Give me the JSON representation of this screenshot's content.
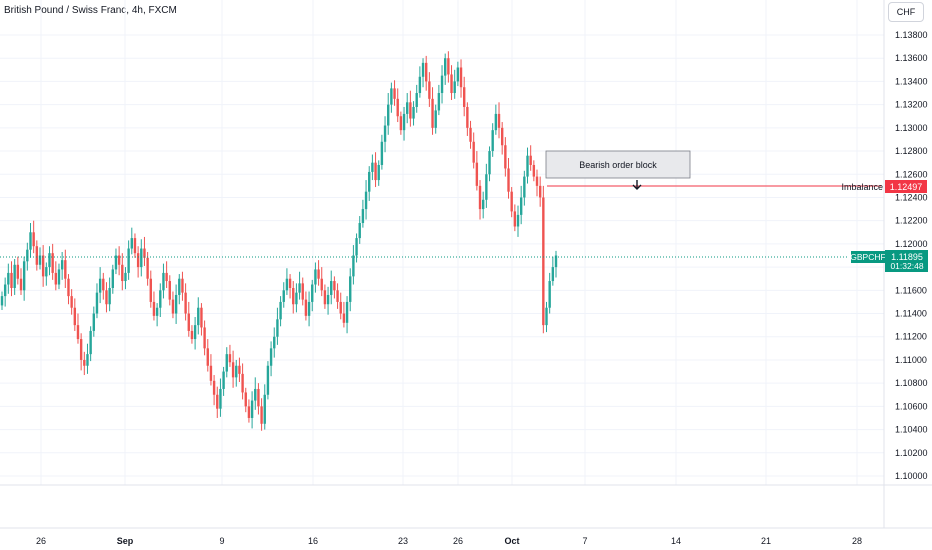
{
  "header": {
    "symbol_title": "British Pound / Swiss Franc, 4h, FXCM",
    "currency_button": "CHF"
  },
  "price_axis": {
    "ticks": [
      "1.13800",
      "1.13600",
      "1.13400",
      "1.13200",
      "1.13000",
      "1.12800",
      "1.12600",
      "1.12400",
      "1.12200",
      "1.12000",
      "1.11800",
      "1.11600",
      "1.11400",
      "1.11200",
      "1.11000",
      "1.10800",
      "1.10600",
      "1.10400",
      "1.10200",
      "1.10000"
    ]
  },
  "time_axis": {
    "labels": [
      {
        "text": "26",
        "bold": false
      },
      {
        "text": "Sep",
        "bold": true
      },
      {
        "text": "9",
        "bold": false
      },
      {
        "text": "16",
        "bold": false
      },
      {
        "text": "23",
        "bold": false
      },
      {
        "text": "26",
        "bold": false
      },
      {
        "text": "Oct",
        "bold": true
      },
      {
        "text": "7",
        "bold": false
      },
      {
        "text": "14",
        "bold": false
      },
      {
        "text": "21",
        "bold": false
      },
      {
        "text": "28",
        "bold": false
      }
    ]
  },
  "annotations": {
    "order_block_label": "Bearish order block",
    "imbalance_label": "Imbalance",
    "imbalance_price": "1.12497"
  },
  "last_price": {
    "symbol": "GBPCHF",
    "price": "1.11895",
    "countdown": "01:32:48"
  },
  "colors": {
    "up": "#26a69a",
    "down": "#ef5350",
    "imbalance": "#f23645",
    "last_price_bg": "#089981",
    "grid": "#f0f3fa"
  },
  "chart_data": {
    "type": "candlestick",
    "ylim": [
      1.099,
      1.1392
    ],
    "close_series": [
      1.1155,
      1.1165,
      1.1175,
      1.1162,
      1.1182,
      1.117,
      1.116,
      1.1185,
      1.1195,
      1.121,
      1.1198,
      1.1182,
      1.119,
      1.1172,
      1.118,
      1.1192,
      1.1175,
      1.1165,
      1.1178,
      1.1186,
      1.117,
      1.1155,
      1.1145,
      1.113,
      1.1118,
      1.11,
      1.1095,
      1.1105,
      1.1125,
      1.114,
      1.1158,
      1.117,
      1.116,
      1.1148,
      1.1162,
      1.1178,
      1.119,
      1.1182,
      1.1168,
      1.1175,
      1.1196,
      1.1205,
      1.1192,
      1.118,
      1.1196,
      1.1188,
      1.117,
      1.115,
      1.1138,
      1.1145,
      1.116,
      1.1175,
      1.1168,
      1.1152,
      1.114,
      1.1156,
      1.117,
      1.1158,
      1.114,
      1.1125,
      1.1118,
      1.113,
      1.1145,
      1.1128,
      1.111,
      1.1095,
      1.1082,
      1.107,
      1.1058,
      1.1075,
      1.109,
      1.1105,
      1.1098,
      1.1085,
      1.1095,
      1.1088,
      1.1072,
      1.106,
      1.105,
      1.1065,
      1.1075,
      1.106,
      1.1045,
      1.107,
      1.1095,
      1.111,
      1.112,
      1.1135,
      1.115,
      1.116,
      1.117,
      1.1162,
      1.1148,
      1.1158,
      1.1166,
      1.1152,
      1.1138,
      1.115,
      1.1165,
      1.1178,
      1.117,
      1.116,
      1.1148,
      1.1156,
      1.1168,
      1.116,
      1.115,
      1.114,
      1.1132,
      1.115,
      1.1172,
      1.119,
      1.1205,
      1.1218,
      1.123,
      1.1245,
      1.1262,
      1.127,
      1.1255,
      1.1268,
      1.1288,
      1.1302,
      1.132,
      1.1334,
      1.1325,
      1.131,
      1.1298,
      1.1312,
      1.1322,
      1.1308,
      1.1318,
      1.133,
      1.1344,
      1.1356,
      1.134,
      1.1325,
      1.13,
      1.1315,
      1.133,
      1.1345,
      1.136,
      1.1346,
      1.133,
      1.134,
      1.1352,
      1.1335,
      1.1318,
      1.13,
      1.1288,
      1.127,
      1.125,
      1.123,
      1.1238,
      1.126,
      1.128,
      1.1298,
      1.1312,
      1.13,
      1.1285,
      1.1265,
      1.1245,
      1.1228,
      1.1215,
      1.1225,
      1.124,
      1.1258,
      1.1276,
      1.1268,
      1.1258,
      1.125,
      1.124,
      1.113,
      1.1145,
      1.1168,
      1.118,
      1.119
    ]
  }
}
